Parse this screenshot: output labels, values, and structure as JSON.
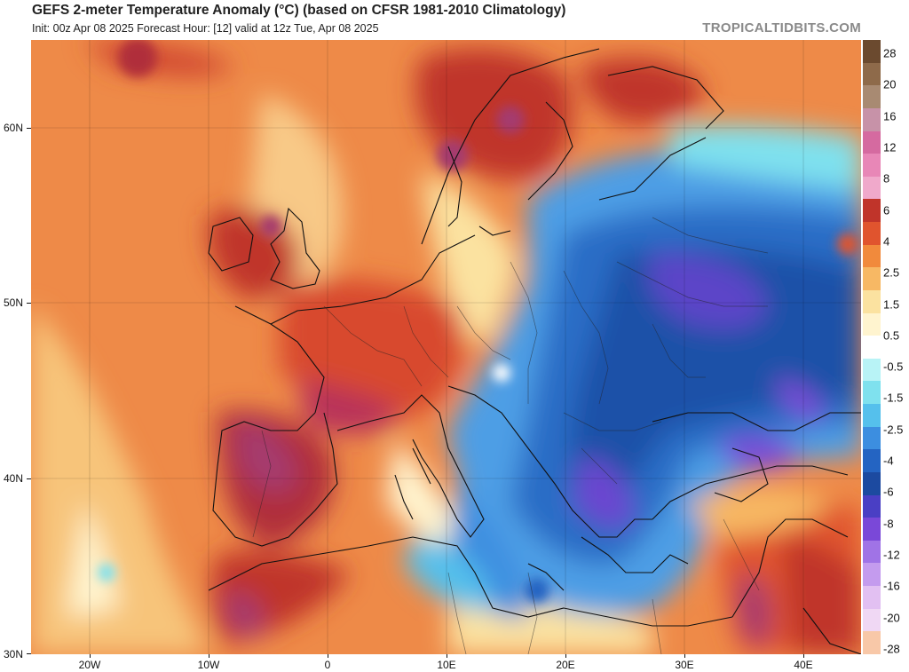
{
  "title": "GEFS 2-meter Temperature Anomaly (°C) (based on CFSR 1981-2010 Climatology)",
  "subtitle": "Init: 00z Apr 08 2025   Forecast Hour: [12]   valid at 12z Tue, Apr 08 2025",
  "brand": "TROPICALTIDBITS.COM",
  "map": {
    "lat_labels": [
      "60N",
      "50N",
      "40N",
      "30N"
    ],
    "lon_labels": [
      "20W",
      "10W",
      "0",
      "10E",
      "20E",
      "30E",
      "40E"
    ]
  },
  "colorbar": {
    "labels": [
      "28",
      "20",
      "16",
      "12",
      "8",
      "6",
      "4",
      "2.5",
      "1.5",
      "0.5",
      "-0.5",
      "-1.5",
      "-2.5",
      "-4",
      "-6",
      "-8",
      "-12",
      "-16",
      "-20",
      "-28"
    ],
    "colors": [
      "#6b4a2f",
      "#8e6a4a",
      "#a88a72",
      "#c792a8",
      "#d56aa0",
      "#e887b7",
      "#f0a9cb",
      "#c0342a",
      "#e0542e",
      "#f18a3c",
      "#f7b864",
      "#fbe2a0",
      "#fff4cf",
      "#ffffff",
      "#b8f3f6",
      "#7fe1ee",
      "#55c0ec",
      "#3c8ee0",
      "#2464c2",
      "#1c4aa0",
      "#4a3fc4",
      "#7a48d8",
      "#a073e6",
      "#c49bee",
      "#e2c0f2",
      "#f0d8f4",
      "#f8c8a8"
    ]
  }
}
